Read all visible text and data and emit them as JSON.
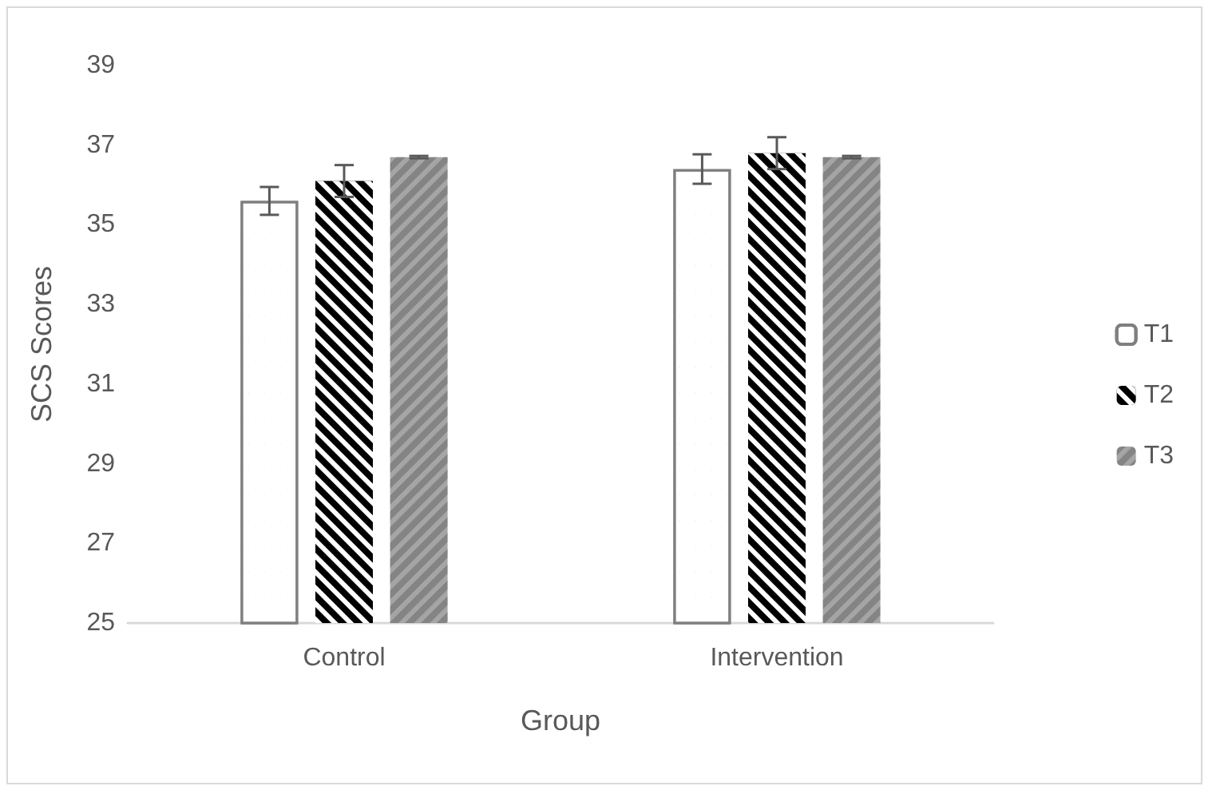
{
  "chart_data": {
    "type": "bar",
    "xlabel": "Group",
    "ylabel": "SCS Scores",
    "categories": [
      "Control",
      "Intervention"
    ],
    "series": [
      {
        "name": "T1",
        "color": "#ffffff",
        "values": [
          35.6,
          36.4
        ],
        "errors": [
          0.35,
          0.37
        ]
      },
      {
        "name": "T2",
        "color": "#000000",
        "values": [
          36.1,
          36.8
        ],
        "errors": [
          0.4,
          0.4
        ]
      },
      {
        "name": "T3",
        "color": "#a5a5a5",
        "values": [
          36.7,
          36.7
        ],
        "errors": [
          0.03,
          0.03
        ]
      }
    ],
    "ylim": [
      25,
      39
    ],
    "yticks": [
      25,
      27,
      29,
      31,
      33,
      35,
      37,
      39
    ],
    "grid": false,
    "legend": "right"
  }
}
